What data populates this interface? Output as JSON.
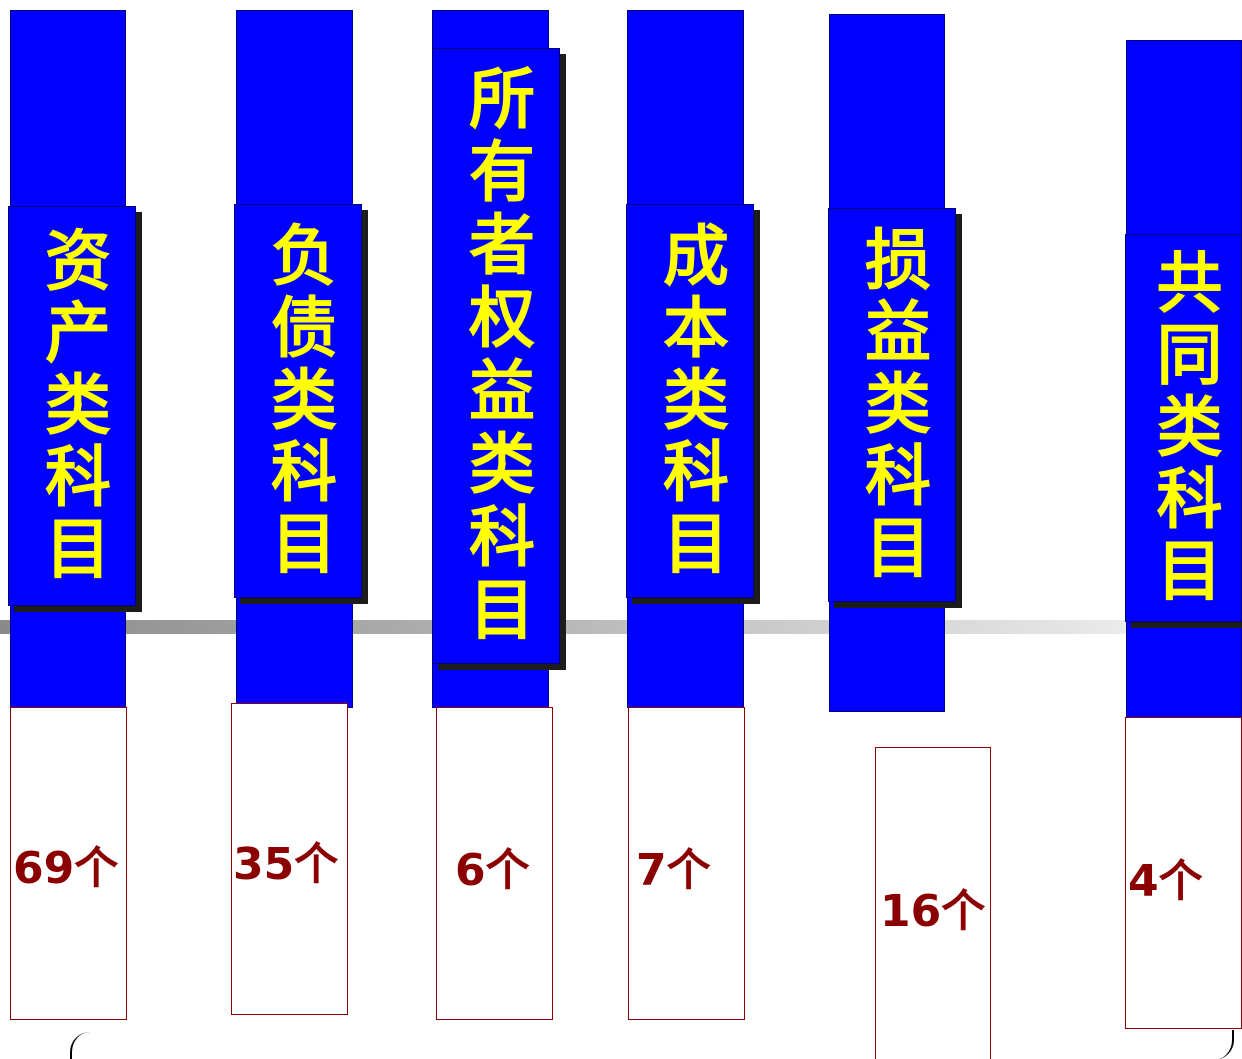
{
  "categories": [
    {
      "id": "assets",
      "label": "资产类科目",
      "count": "69个"
    },
    {
      "id": "liabilities",
      "label": "负债类科目",
      "count": "35个"
    },
    {
      "id": "owners-equity",
      "label": "所有者权益类科目",
      "count": "6个"
    },
    {
      "id": "cost",
      "label": "成本类科目",
      "count": "7个"
    },
    {
      "id": "profit-loss",
      "label": "损益类科目",
      "count": "16个"
    },
    {
      "id": "common",
      "label": "共同类科目",
      "count": "4个"
    }
  ],
  "colors": {
    "bar": "#0000ff",
    "label_text": "#ffff00",
    "count_text": "#8b0000",
    "count_border": "#8b0000",
    "divider_line": "#9a9a9a"
  }
}
